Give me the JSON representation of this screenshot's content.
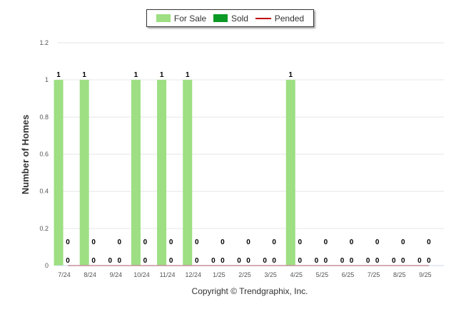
{
  "chart_data": {
    "type": "bar",
    "categories": [
      "7/24",
      "8/24",
      "9/24",
      "10/24",
      "11/24",
      "12/24",
      "1/25",
      "2/25",
      "3/25",
      "4/25",
      "5/25",
      "6/25",
      "7/25",
      "8/25",
      "9/25"
    ],
    "series": [
      {
        "name": "For Sale",
        "kind": "bar",
        "color": "#9ddf82",
        "values": [
          1,
          1,
          0,
          1,
          1,
          1,
          0,
          0,
          0,
          1,
          0,
          0,
          0,
          0,
          0
        ]
      },
      {
        "name": "Sold",
        "kind": "bar",
        "color": "#0a9a25",
        "values": [
          0,
          0,
          0,
          0,
          0,
          0,
          0,
          0,
          0,
          0,
          0,
          0,
          0,
          0,
          0
        ]
      },
      {
        "name": "Pended",
        "kind": "line",
        "color": "#c00000",
        "values": [
          0,
          0,
          0,
          0,
          0,
          0,
          0,
          0,
          0,
          0,
          0,
          0,
          0,
          0,
          0
        ]
      }
    ],
    "ylabel": "Number of Homes",
    "xlabel": "",
    "ylim": [
      0,
      1.2
    ],
    "yticks": [
      "0",
      "0.2",
      "0.4",
      "0.6",
      "0.8",
      "1",
      "1.2"
    ],
    "grid": true,
    "legend_position": "top-center"
  },
  "legend": [
    {
      "label": "For Sale",
      "color": "#9ddf82",
      "shape": "box"
    },
    {
      "label": "Sold",
      "color": "#0a9a25",
      "shape": "box"
    },
    {
      "label": "Pended",
      "color": "#c00000",
      "shape": "line"
    }
  ],
  "copyright": "Copyright © Trendgraphix, Inc."
}
